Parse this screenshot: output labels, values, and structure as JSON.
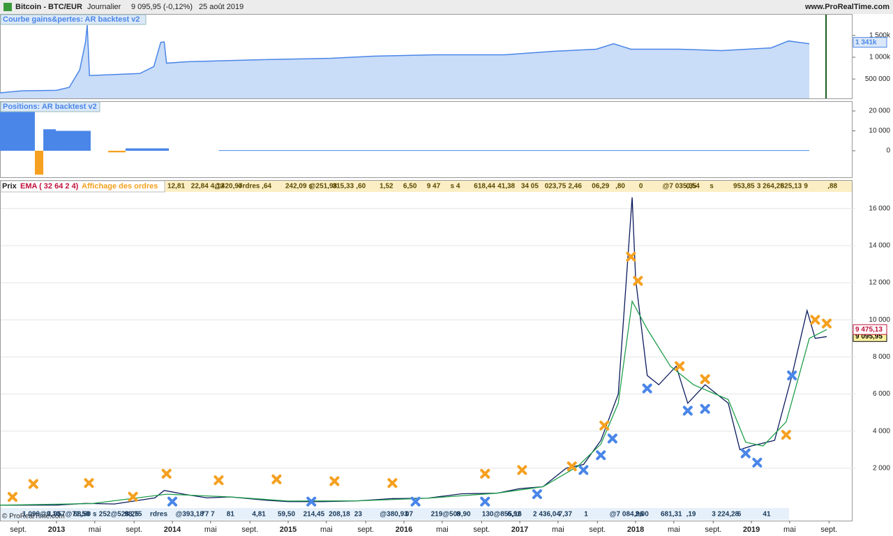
{
  "header": {
    "title": "Bitcoin - BTC/EUR",
    "timeframe": "Journalier",
    "quote": "9 095,95 (-0,12%)",
    "date": "25 août 2019",
    "site": "www.ProRealTime.com"
  },
  "legend": {
    "price": "Prix",
    "ema": "EMA ( 32 64 2 4)",
    "orders": "Affichage des ordres"
  },
  "order_strip_top": [
    "12,81",
    "22,84 4@420,97",
    ",12",
    "ordres",
    ",64",
    "242,09 s",
    "@251,98",
    "315,33",
    ",60",
    "1,52",
    "6,50",
    "9 47",
    "s 4",
    "618,44",
    "41,38",
    "34 05",
    "023,75",
    "2,46",
    "06,29",
    ",80",
    "0",
    "@7 035,35",
    "0,54",
    "s",
    "953,85",
    "3 264,25",
    "825,13",
    "9",
    ",88"
  ],
  "order_strip_bottom": [
    "1 099@9,10",
    "1 957@71,50",
    "68,50 s",
    "252@528,25",
    "98,75",
    "rdres",
    "@393,18",
    "77 7",
    "81",
    "4,81",
    "59,50",
    "214,45",
    "208,18",
    "23",
    "@380,93",
    "07",
    "219@509,90",
    "8",
    "130@855,16",
    "6,92",
    "2 436,04",
    "7,37",
    "1",
    "@7 084,96",
    "2,00",
    "681,31",
    ",19",
    "3 224,28",
    "6",
    "41"
  ],
  "footer": "© ProRealTime.com",
  "xlim": [
    2012.512,
    2019.861
  ],
  "xticks": [
    {
      "value": 2012.67,
      "label": "sept."
    },
    2013,
    {
      "value": 2013.33,
      "label": "mai"
    },
    {
      "value": 2013.67,
      "label": "sept."
    },
    2014,
    {
      "value": 2014.33,
      "label": "mai"
    },
    {
      "value": 2014.67,
      "label": "sept."
    },
    2015,
    {
      "value": 2015.33,
      "label": "mai"
    },
    {
      "value": 2015.67,
      "label": "sept."
    },
    2016,
    {
      "value": 2016.33,
      "label": "mai"
    },
    {
      "value": 2016.67,
      "label": "sept."
    },
    2017,
    {
      "value": 2017.33,
      "label": "mai"
    },
    {
      "value": 2017.67,
      "label": "sept."
    },
    2018,
    {
      "value": 2018.33,
      "label": "mai"
    },
    {
      "value": 2018.67,
      "label": "sept."
    },
    2019,
    {
      "value": 2019.33,
      "label": "mai"
    },
    {
      "value": 2019.67,
      "label": "sept."
    }
  ],
  "chart_data": [
    {
      "type": "area",
      "title": "Courbe gains&pertes: AR backtest v2",
      "color": "#4a86e8",
      "fill": "#c9dcf8",
      "x": [
        2012.51,
        2012.7,
        2013.0,
        2013.11,
        2013.2,
        2013.25,
        2013.265,
        2013.285,
        2013.72,
        2013.84,
        2013.9,
        2013.93,
        2013.95,
        2014.14,
        2014.77,
        2015.37,
        2015.73,
        2016.27,
        2016.87,
        2017.29,
        2017.66,
        2017.81,
        2017.96,
        2018.38,
        2018.74,
        2019.17,
        2019.32,
        2019.5
      ],
      "values": [
        183000,
        230000,
        240000,
        310000,
        706000,
        1341000,
        1738000,
        580000,
        627000,
        786000,
        1341000,
        1350000,
        865000,
        897000,
        944000,
        976000,
        1024000,
        1056000,
        1056000,
        1135000,
        1183000,
        1310000,
        1183000,
        1183000,
        1151000,
        1214000,
        1373000,
        1310000
      ],
      "current": {
        "value": 1341000,
        "label": "1 341k"
      },
      "ylim": [
        55000,
        1976000
      ],
      "yticks": [
        {
          "value": 1500000,
          "label": "1 500k"
        },
        {
          "value": 1000000,
          "label": "1 000k"
        },
        {
          "value": 500000,
          "label": "500 000"
        }
      ]
    },
    {
      "type": "bar",
      "title": "Positions: AR backtest v2",
      "colors": {
        "long": "#4a86e8",
        "short": "#f5a020"
      },
      "x_start": [
        2012.512,
        2012.813,
        2012.886,
        2012.994,
        2013.446,
        2013.596,
        2014.4
      ],
      "x_end": [
        2012.813,
        2012.886,
        2012.994,
        2013.295,
        2013.596,
        2013.97,
        2019.5
      ],
      "values": [
        19500,
        -12000,
        10800,
        10000,
        -800,
        1200,
        300
      ],
      "ylim": [
        -13330,
        24560
      ],
      "yticks": [
        {
          "value": 20000,
          "label": "20 000"
        },
        {
          "value": 10000,
          "label": "10 000"
        },
        0
      ]
    },
    {
      "type": "line",
      "ylim": [
        -790,
        16820
      ],
      "grid": true,
      "yticks": [
        {
          "value": 2000,
          "label": "2 000"
        },
        {
          "value": 4000,
          "label": "4 000"
        },
        {
          "value": 6000,
          "label": "6 000"
        },
        {
          "value": 8000,
          "label": "8 000"
        },
        {
          "value": 10000,
          "label": "10 000"
        },
        {
          "value": 12000,
          "label": "12 000"
        },
        {
          "value": 14000,
          "label": "14 000"
        },
        {
          "value": 16000,
          "label": "16 000"
        }
      ],
      "series": [
        {
          "name": "Prix",
          "color": "#0a1a5c",
          "x": [
            2012.51,
            2013.0,
            2013.25,
            2013.5,
            2013.85,
            2013.93,
            2014.1,
            2014.3,
            2014.5,
            2014.8,
            2015.0,
            2015.3,
            2015.6,
            2015.9,
            2016.2,
            2016.5,
            2016.8,
            2017.0,
            2017.2,
            2017.4,
            2017.55,
            2017.7,
            2017.85,
            2017.97,
            2018.0,
            2018.1,
            2018.2,
            2018.35,
            2018.45,
            2018.6,
            2018.8,
            2018.9,
            2019.0,
            2019.2,
            2019.35,
            2019.48,
            2019.55,
            2019.65
          ],
          "values": [
            8,
            10,
            100,
            70,
            400,
            800,
            600,
            400,
            450,
            280,
            200,
            200,
            240,
            360,
            380,
            620,
            650,
            900,
            1000,
            2000,
            2200,
            3500,
            6000,
            16600,
            12200,
            7000,
            6500,
            7500,
            5500,
            6500,
            5500,
            3000,
            3200,
            3500,
            7000,
            10500,
            9000,
            9096
          ],
          "current": {
            "value": 9095.95,
            "label": "9 095,95"
          }
        },
        {
          "name": "EMA",
          "color": "#1e9e4a",
          "x": [
            2012.51,
            2013.3,
            2013.95,
            2014.5,
            2015.0,
            2015.6,
            2016.2,
            2016.8,
            2017.2,
            2017.5,
            2017.7,
            2017.85,
            2017.97,
            2018.1,
            2018.3,
            2018.5,
            2018.8,
            2018.95,
            2019.1,
            2019.3,
            2019.5,
            2019.65
          ],
          "values": [
            8,
            90,
            600,
            450,
            230,
            240,
            380,
            650,
            1000,
            2100,
            3300,
            5500,
            11000,
            9500,
            7500,
            6500,
            5700,
            3400,
            3200,
            4500,
            9000,
            9475
          ],
          "current": {
            "value": 9475.13,
            "label": "9 475,13"
          }
        },
        {
          "name": "Vente",
          "marker": "cross",
          "color": "#f5a020",
          "x": [
            2012.62,
            2012.8,
            2013.28,
            2013.66,
            2013.95,
            2014.4,
            2014.9,
            2015.4,
            2015.9,
            2016.7,
            2017.02,
            2017.45,
            2017.73,
            2017.96,
            2018.02,
            2018.38,
            2018.6,
            2019.3,
            2019.55,
            2019.65
          ],
          "values": [
            450,
            1150,
            1200,
            460,
            1700,
            1350,
            1400,
            1300,
            1200,
            1700,
            1900,
            2100,
            4300,
            13400,
            12100,
            7500,
            6800,
            3800,
            10000,
            9800
          ]
        },
        {
          "name": "Achat",
          "marker": "cross",
          "color": "#4a86e8",
          "x": [
            2014.0,
            2015.2,
            2016.1,
            2016.7,
            2017.15,
            2017.55,
            2017.7,
            2017.8,
            2018.1,
            2018.45,
            2018.6,
            2018.95,
            2019.05,
            2019.35
          ],
          "values": [
            200,
            200,
            200,
            200,
            600,
            1900,
            2700,
            3600,
            6300,
            5100,
            5200,
            2800,
            2300,
            7000
          ]
        }
      ]
    }
  ]
}
